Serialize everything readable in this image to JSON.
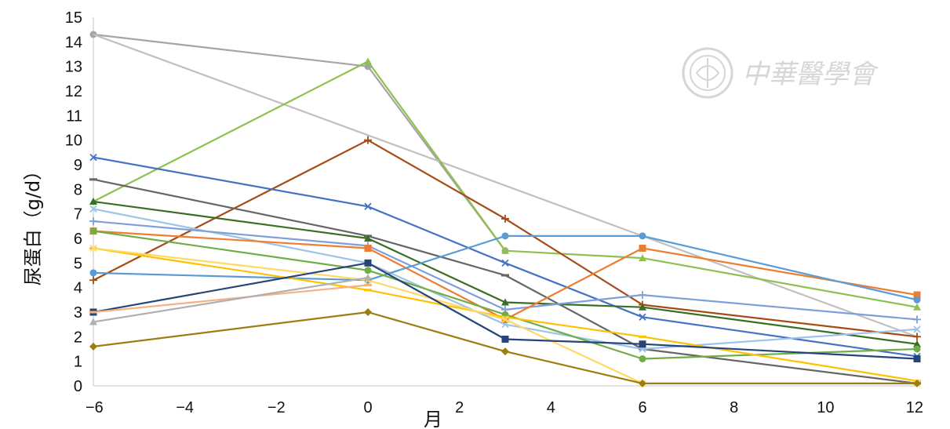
{
  "chart_data": {
    "type": "line",
    "xlabel": "月",
    "ylabel": "尿蛋白（g/d）",
    "xlim": [
      -6,
      12
    ],
    "ylim": [
      0,
      15
    ],
    "x_ticks": [
      "−6",
      "−4",
      "−2",
      "0",
      "2",
      "4",
      "6",
      "8",
      "10",
      "12"
    ],
    "y_ticks": [
      "0",
      "1",
      "2",
      "3",
      "4",
      "5",
      "6",
      "7",
      "8",
      "9",
      "10",
      "11",
      "12",
      "13",
      "14",
      "15"
    ],
    "grid": false,
    "series": [
      {
        "color": "#a5a5a5",
        "marker": "circle",
        "points": [
          [
            -6,
            14.3
          ],
          [
            0,
            13.0
          ],
          [
            3,
            5.5
          ]
        ]
      },
      {
        "color": "#c0c0c0",
        "marker": "none",
        "points": [
          [
            -6,
            14.3
          ],
          [
            6,
            6.1
          ],
          [
            12,
            2.0
          ]
        ]
      },
      {
        "color": "#8fc050",
        "marker": "triangle",
        "points": [
          [
            -6,
            7.5
          ],
          [
            0,
            13.2
          ],
          [
            3,
            5.5
          ],
          [
            6,
            5.2
          ],
          [
            12,
            3.2
          ]
        ]
      },
      {
        "color": "#a64b16",
        "marker": "plus",
        "points": [
          [
            -6,
            4.3
          ],
          [
            0,
            10.0
          ],
          [
            3,
            6.8
          ],
          [
            6,
            3.3
          ],
          [
            12,
            2.0
          ]
        ]
      },
      {
        "color": "#4472c4",
        "marker": "x",
        "points": [
          [
            -6,
            9.3
          ],
          [
            0,
            7.3
          ],
          [
            3,
            5.0
          ],
          [
            6,
            2.8
          ],
          [
            12,
            1.2
          ]
        ]
      },
      {
        "color": "#666666",
        "marker": "dash",
        "points": [
          [
            -6,
            8.4
          ],
          [
            0,
            6.1
          ],
          [
            3,
            4.5
          ],
          [
            6,
            1.5
          ],
          [
            12,
            0.1
          ]
        ]
      },
      {
        "color": "#3a6e24",
        "marker": "triangle",
        "points": [
          [
            -6,
            7.5
          ],
          [
            0,
            6.0
          ],
          [
            3,
            3.4
          ],
          [
            6,
            3.2
          ],
          [
            12,
            1.7
          ]
        ]
      },
      {
        "color": "#9dc3e6",
        "marker": "x",
        "points": [
          [
            -6,
            7.2
          ],
          [
            0,
            5.0
          ],
          [
            3,
            2.5
          ],
          [
            6,
            1.5
          ],
          [
            12,
            2.3
          ]
        ]
      },
      {
        "color": "#7e9fdc",
        "marker": "plus",
        "points": [
          [
            -6,
            6.7
          ],
          [
            0,
            5.7
          ],
          [
            3,
            3.1
          ],
          [
            6,
            3.7
          ],
          [
            12,
            2.7
          ]
        ]
      },
      {
        "color": "#ed7d31",
        "marker": "square",
        "points": [
          [
            -6,
            6.3
          ],
          [
            0,
            5.6
          ],
          [
            3,
            2.7
          ],
          [
            6,
            5.6
          ],
          [
            12,
            3.7
          ]
        ]
      },
      {
        "color": "#5b9bd5",
        "marker": "circle",
        "points": [
          [
            -6,
            4.6
          ],
          [
            0,
            4.3
          ],
          [
            3,
            6.1
          ],
          [
            6,
            6.1
          ],
          [
            12,
            3.5
          ]
        ]
      },
      {
        "color": "#70ad47",
        "marker": "circle",
        "points": [
          [
            -6,
            6.3
          ],
          [
            0,
            4.7
          ],
          [
            3,
            2.9
          ],
          [
            6,
            1.1
          ],
          [
            12,
            1.5
          ]
        ]
      },
      {
        "color": "#ffc000",
        "marker": "dash",
        "points": [
          [
            -6,
            5.6
          ],
          [
            0,
            3.9
          ],
          [
            3,
            2.8
          ],
          [
            6,
            2.0
          ],
          [
            12,
            0.2
          ]
        ]
      },
      {
        "color": "#ffd966",
        "marker": "x",
        "points": [
          [
            -6,
            5.6
          ],
          [
            0,
            4.3
          ],
          [
            3,
            2.7
          ],
          [
            6,
            0.1
          ],
          [
            12,
            0.1
          ]
        ]
      },
      {
        "color": "#264478",
        "marker": "square",
        "points": [
          [
            -6,
            3.0
          ],
          [
            0,
            5.0
          ],
          [
            3,
            1.9
          ],
          [
            6,
            1.7
          ],
          [
            12,
            1.1
          ]
        ]
      },
      {
        "color": "#f4b183",
        "marker": "dash",
        "points": [
          [
            -6,
            3.0
          ],
          [
            0,
            4.1
          ]
        ]
      },
      {
        "color": "#b0b0b0",
        "marker": "triangle",
        "points": [
          [
            -6,
            2.6
          ],
          [
            0,
            4.4
          ]
        ]
      },
      {
        "color": "#9c7e10",
        "marker": "diamond",
        "points": [
          [
            -6,
            1.6
          ],
          [
            0,
            3.0
          ],
          [
            3,
            1.4
          ],
          [
            6,
            0.1
          ],
          [
            12,
            0.1
          ]
        ]
      }
    ]
  },
  "watermark": {
    "text": "中華醫學會",
    "color": "#d6d6d6"
  }
}
